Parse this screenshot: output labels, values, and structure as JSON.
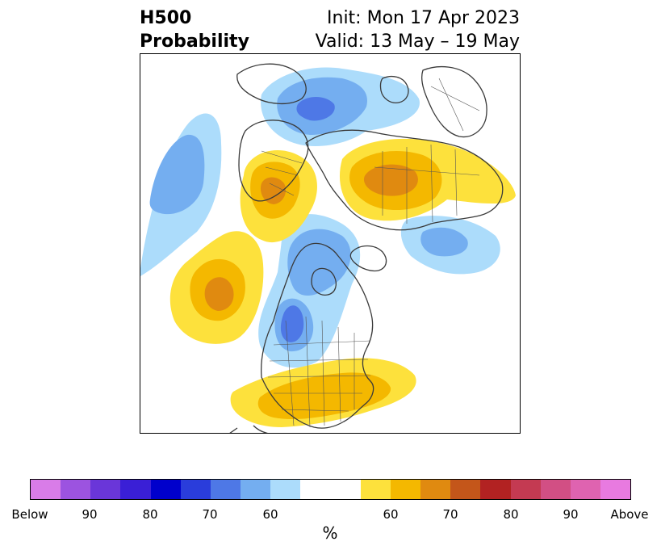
{
  "title": {
    "field": "H500",
    "product": "Probability",
    "init": "Init: Mon 17 Apr 2023",
    "valid": "Valid: 13 May – 19 May"
  },
  "map": {
    "projection": "north-polar-stereographic",
    "coastline_color": "#3a3a3a",
    "anomaly_regions": [
      {
        "name": "gulf-of-alaska-pacific-below",
        "category": "below",
        "peak_level": 70
      },
      {
        "name": "eastern-arctic-greenland-below",
        "category": "below",
        "peak_level": 75
      },
      {
        "name": "central-canada-below",
        "category": "below",
        "peak_level": 75
      },
      {
        "name": "northern-russia-below",
        "category": "below",
        "peak_level": 60
      },
      {
        "name": "scandinavia-europe-above",
        "category": "above",
        "peak_level": 70
      },
      {
        "name": "eastern-siberia-above",
        "category": "above",
        "peak_level": 70
      },
      {
        "name": "north-pacific-above",
        "category": "above",
        "peak_level": 70
      },
      {
        "name": "eastern-us-above",
        "category": "above",
        "peak_level": 65
      }
    ]
  },
  "colorbar": {
    "colors": [
      "#d97ce8",
      "#9c53e0",
      "#6a36d9",
      "#3a1fd6",
      "#0000cc",
      "#2a3ddb",
      "#4e78e6",
      "#74aef0",
      "#acdcfb",
      "#ffffff",
      "#ffffff",
      "#fde13c",
      "#f4b800",
      "#e08a10",
      "#c4561a",
      "#b22222",
      "#c43a52",
      "#d24f84",
      "#df63b0",
      "#e87ae0"
    ],
    "labels": [
      "Below",
      "90",
      "80",
      "70",
      "60",
      "60",
      "70",
      "80",
      "90",
      "Above"
    ],
    "units": "%"
  }
}
